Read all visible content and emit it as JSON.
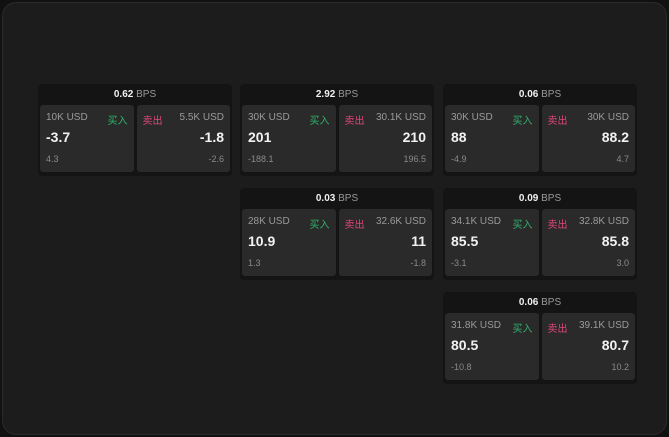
{
  "labels": {
    "buy": "买入",
    "sell": "卖出",
    "unit": "BPS"
  },
  "colors": {
    "buy": "#2fb36a",
    "sell": "#e0457b"
  },
  "panels": [
    {
      "spread": "0.62",
      "buy": {
        "qty": "10K USD",
        "price": "-3.7",
        "change": "4.3"
      },
      "sell": {
        "qty": "5.5K USD",
        "price": "-1.8",
        "change": "-2.6"
      }
    },
    {
      "spread": "2.92",
      "buy": {
        "qty": "30K USD",
        "price": "201",
        "change": "-188.1"
      },
      "sell": {
        "qty": "30.1K USD",
        "price": "210",
        "change": "196.5"
      }
    },
    {
      "spread": "0.06",
      "buy": {
        "qty": "30K USD",
        "price": "88",
        "change": "-4.9"
      },
      "sell": {
        "qty": "30K USD",
        "price": "88.2",
        "change": "4.7"
      }
    },
    {
      "spread": "0.03",
      "buy": {
        "qty": "28K USD",
        "price": "10.9",
        "change": "1.3"
      },
      "sell": {
        "qty": "32.6K USD",
        "price": "11",
        "change": "-1.8"
      }
    },
    {
      "spread": "0.09",
      "buy": {
        "qty": "34.1K USD",
        "price": "85.5",
        "change": "-3.1"
      },
      "sell": {
        "qty": "32.8K USD",
        "price": "85.8",
        "change": "3.0"
      }
    },
    {
      "spread": "0.06",
      "buy": {
        "qty": "31.8K USD",
        "price": "80.5",
        "change": "-10.8"
      },
      "sell": {
        "qty": "39.1K USD",
        "price": "80.7",
        "change": "10.2"
      }
    }
  ]
}
